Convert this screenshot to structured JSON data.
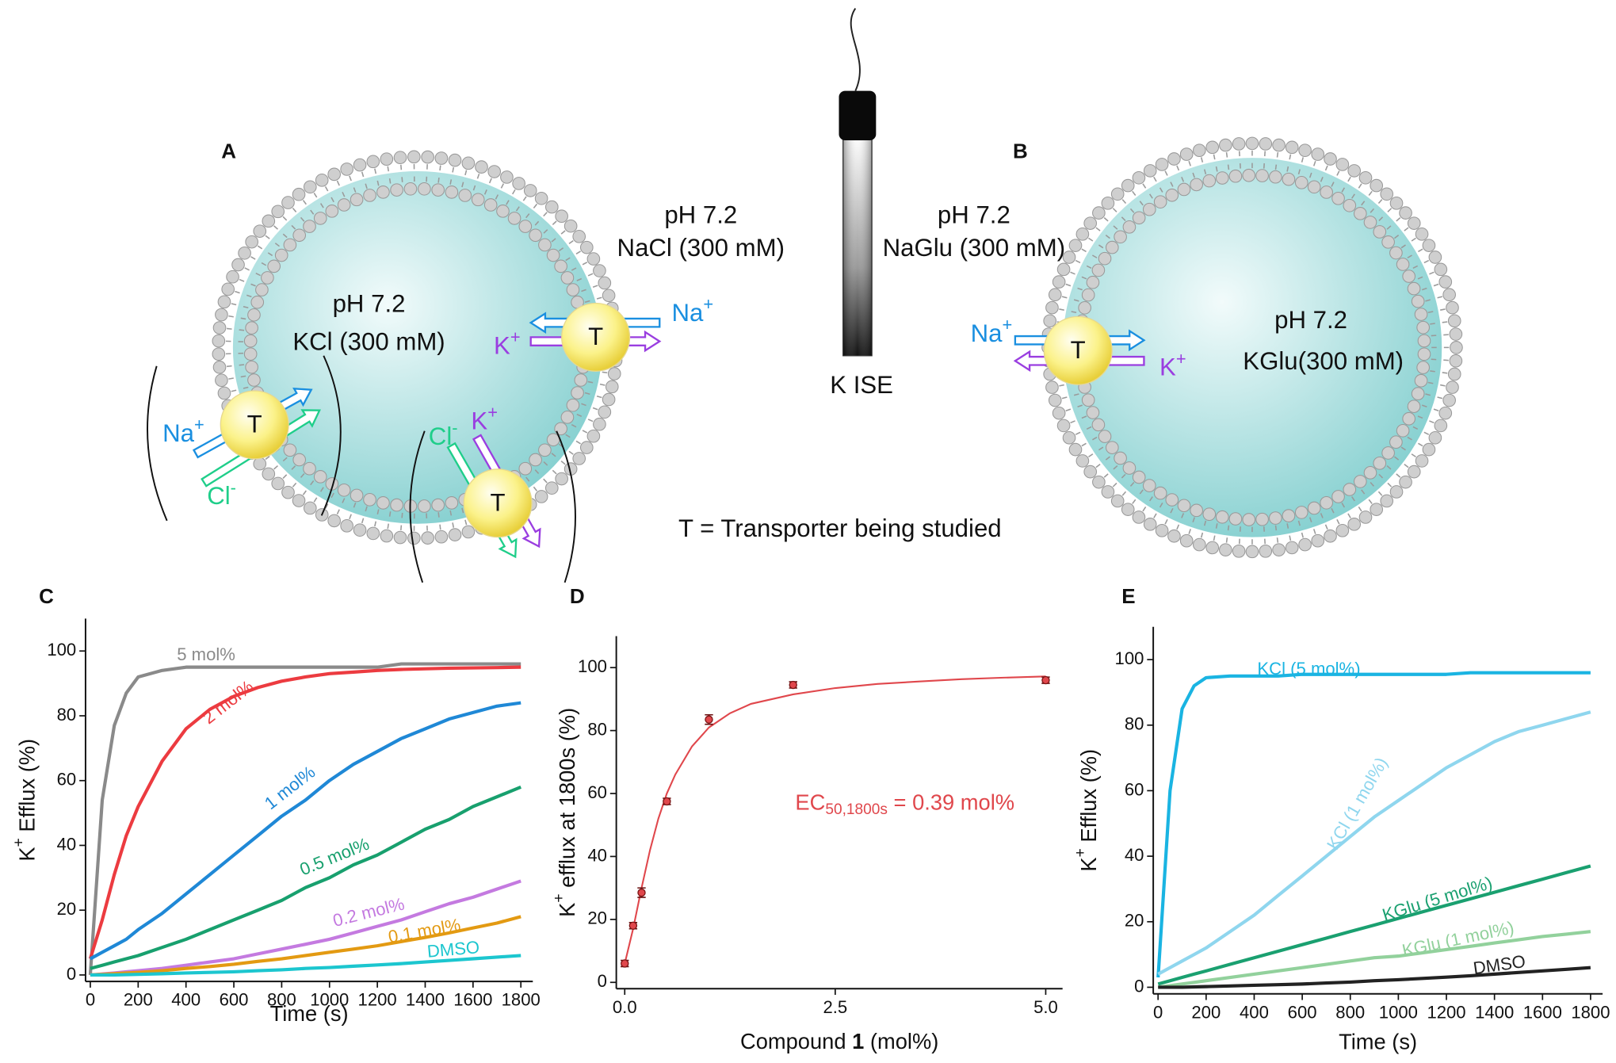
{
  "panels": {
    "a": "A",
    "b": "B",
    "c": "C",
    "d": "D",
    "e": "E"
  },
  "diagram": {
    "inside_a": {
      "ph": "pH 7.2",
      "salt": "KCl (300 mM)"
    },
    "outside_a": {
      "ph": "pH 7.2",
      "salt": "NaCl (300 mM)"
    },
    "outside_b": {
      "ph": "pH 7.2",
      "salt": "NaGlu (300 mM)"
    },
    "inside_b": {
      "ph": "pH 7.2",
      "salt": "KGlu(300 mM)"
    },
    "electrode": "K ISE",
    "transporter": "T",
    "legend": "T = Transporter being studied",
    "ions": [
      {
        "base": "Na",
        "sup": "+",
        "color": "#1a8fe0"
      },
      {
        "base": "K",
        "sup": "+",
        "color": "#9a3ee0"
      },
      {
        "base": "Na",
        "sup": "+",
        "color": "#1a8fe0"
      },
      {
        "base": "Cl",
        "sup": "-",
        "color": "#1fce8a"
      },
      {
        "base": "Cl",
        "sup": "-",
        "color": "#1fce8a"
      },
      {
        "base": "K",
        "sup": "+",
        "color": "#9a3ee0"
      },
      {
        "base": "Na",
        "sup": "+",
        "color": "#1a8fe0"
      },
      {
        "base": "K",
        "sup": "+",
        "color": "#9a3ee0"
      }
    ]
  },
  "chart_data": [
    {
      "type": "line",
      "x_label": "Time (s)",
      "y_label": {
        "base": "K",
        "sup": "+",
        "rest": " Efflux (%)"
      },
      "x": [
        0,
        50,
        100,
        150,
        200,
        300,
        400,
        500,
        600,
        700,
        800,
        900,
        1000,
        1100,
        1200,
        1300,
        1400,
        1500,
        1600,
        1700,
        1800
      ],
      "xlim": [
        -20,
        1850
      ],
      "xticks": [
        0,
        200,
        400,
        600,
        800,
        1000,
        1200,
        1400,
        1600,
        1800
      ],
      "ylim": [
        -2,
        110
      ],
      "yticks": [
        0,
        20,
        40,
        60,
        80,
        100
      ],
      "series": [
        {
          "name": "5 mol%",
          "color": "#8a8a8a",
          "values": [
            0,
            54,
            77,
            87,
            92,
            94,
            95,
            95,
            95,
            95,
            95,
            95,
            95,
            95,
            95,
            96,
            96,
            96,
            96,
            96,
            96
          ]
        },
        {
          "name": "2 mol%",
          "color": "#ec3b40",
          "values": [
            5,
            17,
            31,
            43,
            52,
            66,
            76,
            82,
            86,
            88.7,
            90.7,
            92,
            93,
            93.5,
            94,
            94.3,
            94.5,
            94.7,
            94.8,
            94.9,
            95
          ]
        },
        {
          "name": "1 mol%",
          "color": "#1f88d6",
          "values": [
            5,
            7,
            9,
            11,
            14,
            19,
            25,
            31,
            37,
            43,
            49,
            54,
            60,
            65,
            69,
            73,
            76,
            79,
            81,
            83,
            84
          ]
        },
        {
          "name": "0.5 mol%",
          "color": "#18a06e",
          "values": [
            2,
            3,
            4,
            5,
            6,
            8.5,
            11,
            14,
            17,
            20,
            23,
            27,
            30,
            34,
            37,
            41,
            45,
            48,
            52,
            55,
            58
          ]
        },
        {
          "name": "0.2 mol%",
          "color": "#c47ae0",
          "values": [
            0,
            0.3,
            0.6,
            1,
            1.3,
            2,
            3,
            4,
            5,
            6.5,
            8,
            9.5,
            11,
            13,
            15,
            17,
            19.5,
            22,
            24,
            26.5,
            29
          ]
        },
        {
          "name": "0.1 mol%",
          "color": "#e39a12",
          "values": [
            0,
            0.2,
            0.4,
            0.6,
            0.8,
            1.3,
            2,
            2.6,
            3.3,
            4.2,
            5,
            6,
            7,
            8,
            9,
            10.3,
            11.6,
            13,
            14.5,
            16,
            18
          ]
        },
        {
          "name": "DMSO",
          "color": "#1cc6cf",
          "values": [
            0,
            0,
            0,
            0.1,
            0.2,
            0.4,
            0.6,
            0.8,
            1,
            1.3,
            1.6,
            2,
            2.3,
            2.7,
            3.1,
            3.5,
            4,
            4.5,
            5,
            5.5,
            6
          ]
        }
      ]
    },
    {
      "type": "scatter",
      "x_label": {
        "pre": "Compound ",
        "bold": "1",
        "post": " (mol%)"
      },
      "y_label": {
        "base": "K",
        "sup": "+",
        "rest": " efflux at 1800s (%)"
      },
      "annotation": {
        "base": "EC",
        "sub": "50,1800s",
        "rest": " = 0.39 mol%"
      },
      "color": "#e0474c",
      "x": [
        0,
        0.1,
        0.2,
        0.5,
        1,
        2,
        5
      ],
      "values": [
        6,
        18,
        28.5,
        57.5,
        83.5,
        94.5,
        96
      ],
      "errors": [
        1,
        1,
        1.5,
        1,
        1.5,
        1,
        1
      ],
      "fit": {
        "x": [
          0,
          0.1,
          0.2,
          0.3,
          0.4,
          0.5,
          0.6,
          0.8,
          1,
          1.25,
          1.5,
          2,
          2.5,
          3,
          3.5,
          4,
          4.5,
          5
        ],
        "values": [
          6,
          17,
          30,
          42,
          52,
          60,
          66,
          75,
          81,
          85.5,
          88.5,
          91.5,
          93.5,
          94.8,
          95.6,
          96.3,
          96.8,
          97.2
        ]
      },
      "xlim": [
        -0.1,
        5.2
      ],
      "xticks": [
        {
          "value": 0,
          "label": "0.0"
        },
        2.5,
        {
          "value": 5,
          "label": "5.0"
        }
      ],
      "ylim": [
        -2,
        110
      ],
      "yticks": [
        0,
        20,
        40,
        60,
        80,
        100
      ]
    },
    {
      "type": "line",
      "x_label": "Time (s)",
      "y_label": {
        "base": "K",
        "sup": "+",
        "rest": " Efflux (%)"
      },
      "x": [
        0,
        50,
        100,
        150,
        200,
        300,
        400,
        500,
        600,
        700,
        800,
        900,
        1000,
        1100,
        1200,
        1300,
        1400,
        1500,
        1600,
        1700,
        1800
      ],
      "xlim": [
        -20,
        1850
      ],
      "xticks": [
        0,
        200,
        400,
        600,
        800,
        1000,
        1200,
        1400,
        1600,
        1800
      ],
      "ylim": [
        -2,
        110
      ],
      "yticks": [
        0,
        20,
        40,
        60,
        80,
        100
      ],
      "series": [
        {
          "name": "KCl (5 mol%)",
          "color": "#1ab4e2",
          "values": [
            3,
            60,
            85,
            92,
            94.5,
            95,
            95,
            95,
            95.5,
            95.5,
            95.5,
            95.5,
            95.5,
            95.5,
            95.5,
            96,
            96,
            96,
            96,
            96,
            96
          ]
        },
        {
          "name": "KCl (1 mol%)",
          "color": "#8fd6ee",
          "values": [
            4,
            6,
            8,
            10,
            12,
            17,
            22,
            28,
            34,
            40,
            46,
            52,
            57,
            62,
            67,
            71,
            75,
            78,
            80,
            82,
            84
          ]
        },
        {
          "name": "KGlu (5 mol%)",
          "color": "#1aa070",
          "values": [
            1,
            2,
            3,
            4,
            5,
            7,
            9,
            11,
            13,
            15,
            17,
            19,
            21,
            23,
            25,
            27,
            29,
            31,
            33,
            35,
            37
          ]
        },
        {
          "name": "KGlu (1 mol%)",
          "color": "#92d19c",
          "values": [
            0,
            0.5,
            1,
            1.5,
            2,
            3,
            4,
            5,
            6,
            7,
            8,
            9,
            9.5,
            10.5,
            11.5,
            12.5,
            13.5,
            14.5,
            15.5,
            16.2,
            17
          ]
        },
        {
          "name": "DMSO",
          "color": "#222222",
          "values": [
            0,
            0,
            0,
            0.1,
            0.2,
            0.4,
            0.6,
            0.8,
            1,
            1.3,
            1.6,
            2,
            2.3,
            2.7,
            3.1,
            3.5,
            4,
            4.5,
            5,
            5.5,
            6
          ]
        }
      ]
    }
  ]
}
